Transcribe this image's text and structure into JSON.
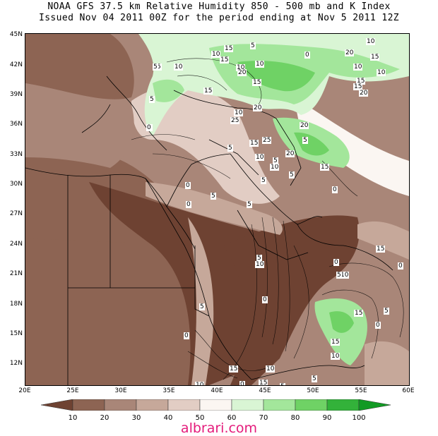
{
  "title_line1": "NOAA GFS 37.5 km Relative Humidity 850 - 500 mb and K Index",
  "title_line2": "Issued Nov 04 2011 00Z for the period ending at Nov 5 2011 12Z",
  "lat_labels": [
    "45N",
    "42N",
    "39N",
    "36N",
    "33N",
    "30N",
    "27N",
    "24N",
    "21N",
    "18N",
    "15N",
    "12N"
  ],
  "lon_labels": [
    "20E",
    "25E",
    "30E",
    "35E",
    "40E",
    "45E",
    "50E",
    "55E",
    "60E"
  ],
  "legend": {
    "labels": [
      "10",
      "20",
      "30",
      "40",
      "50",
      "60",
      "70",
      "80",
      "90",
      "100"
    ],
    "colors": [
      "#6e4232",
      "#8d6453",
      "#a98678",
      "#c6a89a",
      "#e2cdc4",
      "#fbf6f2",
      "#d9f5d4",
      "#a3e69b",
      "#6fd265",
      "#33b23a",
      "#129a24"
    ]
  },
  "contour_labels": [
    "10",
    "15",
    "20",
    "10",
    "15",
    "5",
    "10",
    "15",
    "10",
    "20",
    "5",
    "15",
    "10",
    "20",
    "15",
    "0",
    "5",
    "15",
    "10",
    "0",
    "15",
    "5",
    "10",
    "0",
    "5",
    "0",
    "5",
    "10",
    "5",
    "0",
    "10",
    "5",
    "5",
    "0",
    "5",
    "0",
    "10",
    "15",
    "20",
    "25",
    "5",
    "10",
    "20",
    "15",
    "25",
    "20",
    "5",
    "0",
    "10",
    "5",
    "15",
    "10",
    "15",
    "5",
    "0",
    "5",
    "0",
    "15",
    "5",
    "0",
    "15",
    "5",
    "10",
    "15",
    "10",
    "0"
  ],
  "site": "albrari.com"
}
